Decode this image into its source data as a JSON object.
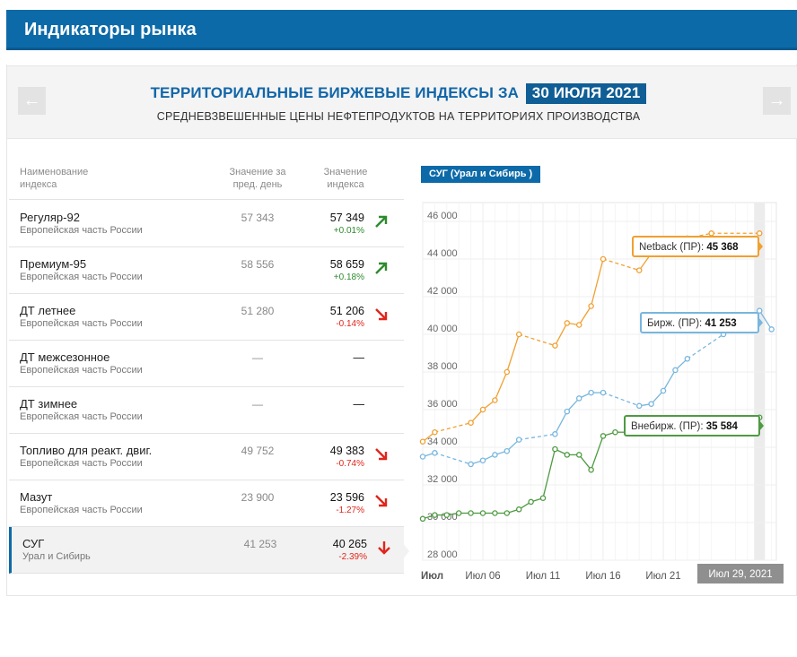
{
  "header": {
    "title": "Индикаторы рынка"
  },
  "panel": {
    "title": "ТЕРРИТОРИАЛЬНЫЕ БИРЖЕВЫЕ ИНДЕКСЫ ЗА",
    "date": "30 ИЮЛЯ 2021",
    "subtitle": "СРЕДНЕВЗВЕШЕННЫЕ ЦЕНЫ НЕФТЕПРОДУКТОВ НА ТЕРРИТОРИЯХ ПРОИЗВОДСТВА",
    "prev_icon": "←",
    "next_icon": "→"
  },
  "table": {
    "col_name": "Наименование индекса",
    "col_prev": "Значение за пред. день",
    "col_cur": "Значение индекса",
    "rows": [
      {
        "name": "Регуляр-92",
        "region": "Европейская часть России",
        "prev": "57 343",
        "cur": "57 349",
        "chg": "+0.01%",
        "dir": "up"
      },
      {
        "name": "Премиум-95",
        "region": "Европейская часть России",
        "prev": "58 556",
        "cur": "58 659",
        "chg": "+0.18%",
        "dir": "up"
      },
      {
        "name": "ДТ летнее",
        "region": "Европейская часть России",
        "prev": "51 280",
        "cur": "51 206",
        "chg": "-0.14%",
        "dir": "down"
      },
      {
        "name": "ДТ межсезонное",
        "region": "Европейская часть России",
        "prev": "—",
        "cur": "—",
        "chg": "",
        "dir": "none"
      },
      {
        "name": "ДТ зимнее",
        "region": "Европейская часть России",
        "prev": "—",
        "cur": "—",
        "chg": "",
        "dir": "none"
      },
      {
        "name": "Топливо для реакт. двиг.",
        "region": "Европейская часть России",
        "prev": "49 752",
        "cur": "49 383",
        "chg": "-0.74%",
        "dir": "down"
      },
      {
        "name": "Мазут",
        "region": "Европейская часть России",
        "prev": "23 900",
        "cur": "23 596",
        "chg": "-1.27%",
        "dir": "down"
      },
      {
        "name": "СУГ",
        "region": "Урал и Сибирь",
        "prev": "41 253",
        "cur": "40 265",
        "chg": "-2.39%",
        "dir": "down-bold",
        "active": true
      }
    ]
  },
  "chart_tag": "СУГ (Урал и Сибирь )",
  "colors": {
    "netback": "#f0a030",
    "exchange": "#78b6de",
    "offexchange": "#4f9a42",
    "up": "#2e8b2e",
    "down": "#e0251b",
    "brand": "#0d6aa8"
  },
  "chart_data": {
    "type": "line",
    "ylim": [
      28000,
      47000
    ],
    "yticks": [
      28000,
      30000,
      32000,
      34000,
      36000,
      38000,
      40000,
      42000,
      44000,
      46000
    ],
    "ytick_labels": [
      "28 000",
      "30 000",
      "32 000",
      "34 000",
      "36 000",
      "38 000",
      "40 000",
      "42 000",
      "44 000",
      "46 000"
    ],
    "xlim": [
      1,
      30.4
    ],
    "xticks": [
      1,
      6,
      11,
      16,
      21
    ],
    "xtick_labels": [
      "Июл",
      "Июл 06",
      "Июл 11",
      "Июл 16",
      "Июл 21"
    ],
    "crosshair_label": "Июл 29, 2021",
    "crosshair_x": 29,
    "series": [
      {
        "name": "Netback (ПР)",
        "color_key": "netback",
        "x": [
          1,
          2,
          5,
          6,
          7,
          8,
          9,
          12,
          13,
          14,
          15,
          16,
          19,
          20,
          22,
          23,
          25,
          29
        ],
        "y": [
          34300,
          34800,
          35300,
          36000,
          36500,
          38000,
          40000,
          39400,
          40600,
          40500,
          41500,
          44000,
          43400,
          44300,
          44700,
          45100,
          45368,
          45368
        ],
        "tooltip": "Netback (ПР):",
        "tooltip_value": "45 368"
      },
      {
        "name": "Бирж. (ПР)",
        "color_key": "exchange",
        "x": [
          1,
          2,
          5,
          6,
          7,
          8,
          9,
          12,
          13,
          14,
          15,
          16,
          19,
          20,
          21,
          22,
          23,
          26,
          27,
          28,
          29,
          30
        ],
        "y": [
          33500,
          33700,
          33100,
          33300,
          33600,
          33800,
          34400,
          34700,
          35900,
          36600,
          36900,
          36900,
          36200,
          36300,
          37000,
          38100,
          38700,
          40000,
          40500,
          40800,
          41253,
          40265
        ],
        "tooltip": "Бирж. (ПР):",
        "tooltip_value": "41 253"
      },
      {
        "name": "Внебирж. (ПР)",
        "color_key": "offexchange",
        "x": [
          1,
          2,
          3,
          4,
          5,
          6,
          7,
          8,
          9,
          10,
          11,
          12,
          13,
          14,
          15,
          16,
          17,
          18,
          19,
          20,
          21,
          22,
          23,
          24,
          25,
          26,
          27,
          28,
          29
        ],
        "y": [
          30200,
          30400,
          30400,
          30500,
          30500,
          30500,
          30500,
          30500,
          30700,
          31100,
          31300,
          33900,
          33600,
          33600,
          32800,
          34600,
          34800,
          34800,
          34900,
          34900,
          34900,
          35000,
          35100,
          35100,
          35200,
          35300,
          35400,
          35500,
          35584
        ],
        "tooltip": "Внебирж. (ПР):",
        "tooltip_value": "35 584"
      }
    ]
  }
}
